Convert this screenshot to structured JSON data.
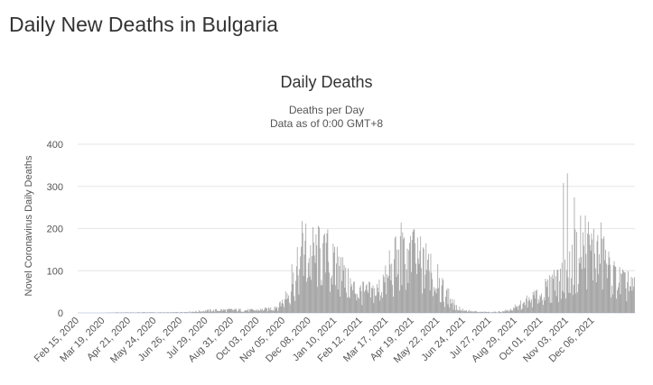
{
  "page": {
    "title": "Daily New Deaths in Bulgaria"
  },
  "chart_data": {
    "type": "bar",
    "title": "Daily Deaths",
    "subtitle_lines": [
      "Deaths per Day",
      "Data as of 0:00 GMT+8"
    ],
    "xlabel": "",
    "ylabel": "Novel Coronavirus Daily Deaths",
    "ylim": [
      0,
      400
    ],
    "yticks": [
      0,
      100,
      200,
      300,
      400
    ],
    "grid": true,
    "bar_color": "#999999",
    "x_tick_labels": [
      "Feb 15, 2020",
      "Mar 19, 2020",
      "Apr 21, 2020",
      "May 24, 2020",
      "Jun 26, 2020",
      "Jul 29, 2020",
      "Aug 31, 2020",
      "Oct 03, 2020",
      "Nov 05, 2020",
      "Dec 08, 2020",
      "Jan 10, 2021",
      "Feb 12, 2021",
      "Mar 17, 2021",
      "Apr 19, 2021",
      "May 22, 2021",
      "Jun 24, 2021",
      "Jul 27, 2021",
      "Aug 29, 2021",
      "Oct 01, 2021",
      "Nov 03, 2021",
      "Dec 06, 2021"
    ],
    "start_date": "2020-02-15",
    "period_days": 7,
    "weekly_average_deaths": [
      0,
      0,
      0,
      0,
      0,
      0.4,
      0.6,
      1,
      1,
      1,
      1,
      1.2,
      1.4,
      1.2,
      1,
      1,
      1,
      1.2,
      1.6,
      2,
      2.5,
      3,
      4,
      5,
      5.5,
      6,
      6.5,
      6.5,
      7,
      6.5,
      6,
      6,
      6,
      7,
      8,
      10,
      15,
      25,
      45,
      70,
      95,
      115,
      125,
      130,
      130,
      120,
      105,
      95,
      80,
      65,
      55,
      48,
      45,
      45,
      50,
      55,
      70,
      90,
      110,
      120,
      125,
      120,
      110,
      100,
      85,
      70,
      50,
      35,
      20,
      12,
      7,
      5,
      3,
      2,
      2,
      2,
      2,
      3,
      5,
      8,
      12,
      18,
      25,
      32,
      40,
      50,
      55,
      62,
      72,
      85,
      100,
      120,
      140,
      145,
      140,
      130,
      110,
      95,
      80,
      70,
      60,
      55
    ],
    "peak_daily": [
      {
        "date": "2020-11-28",
        "value": 218
      },
      {
        "date": "2020-12-03",
        "value": 212
      },
      {
        "date": "2021-04-04",
        "value": 214
      },
      {
        "date": "2021-10-29",
        "value": 308
      },
      {
        "date": "2021-11-03",
        "value": 331
      },
      {
        "date": "2021-11-12",
        "value": 274
      }
    ]
  }
}
